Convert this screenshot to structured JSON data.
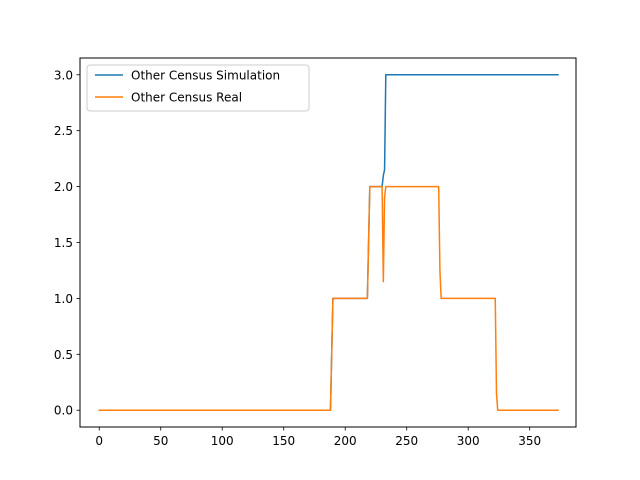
{
  "chart_data": {
    "type": "line",
    "title": "",
    "xlabel": "",
    "ylabel": "",
    "xlim": [
      -15.65,
      387.65
    ],
    "ylim": [
      -0.15,
      3.15
    ],
    "x_ticks": [
      0,
      50,
      100,
      150,
      200,
      250,
      300,
      350
    ],
    "y_ticks": [
      0.0,
      0.5,
      1.0,
      1.5,
      2.0,
      2.5,
      3.0
    ],
    "x_tick_labels": [
      "0",
      "50",
      "100",
      "150",
      "200",
      "250",
      "300",
      "350"
    ],
    "y_tick_labels": [
      "0.0",
      "0.5",
      "1.0",
      "1.5",
      "2.0",
      "2.5",
      "3.0"
    ],
    "grid": false,
    "legend_position": "upper-left",
    "series": [
      {
        "name": "Other Census Simulation",
        "color": "#1f77b4",
        "x": [
          0,
          188,
          190,
          218,
          220,
          230,
          231,
          232,
          233,
          373
        ],
        "y": [
          0,
          0,
          1,
          1,
          2,
          2,
          2.1,
          2.15,
          3,
          3
        ]
      },
      {
        "name": "Other Census Real",
        "color": "#ff7f0e",
        "x": [
          0,
          188,
          190,
          218,
          220,
          230,
          231,
          232,
          233,
          276,
          277,
          278,
          322,
          323,
          324,
          373
        ],
        "y": [
          0,
          0,
          1,
          1,
          2,
          2,
          1.15,
          1.9,
          2,
          2,
          1.25,
          1,
          1,
          0.15,
          0,
          0
        ]
      }
    ]
  }
}
